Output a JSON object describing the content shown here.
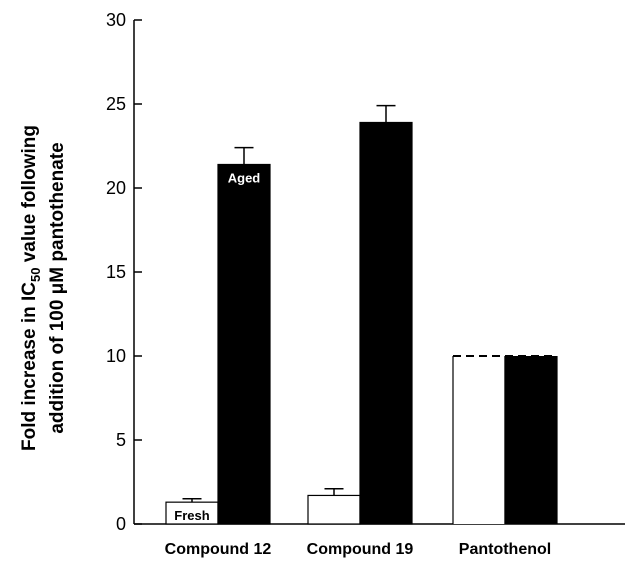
{
  "chart_data": {
    "type": "bar",
    "categories": [
      "Compound 12",
      "Compound 19",
      "Pantothenol"
    ],
    "series": [
      {
        "values": [
          1.3,
          1.7,
          10.0
        ],
        "errors": [
          0.2,
          0.4,
          null
        ],
        "color": "#ffffff",
        "dashed_top": [
          false,
          false,
          true
        ]
      },
      {
        "values": [
          21.4,
          23.9,
          10.0
        ],
        "errors": [
          1.0,
          1.0,
          null
        ],
        "color": "#000000",
        "dashed_top": [
          false,
          false,
          true
        ]
      }
    ],
    "ylabel_line1": "Fold increase in IC",
    "ylabel_sub": "50",
    "ylabel_line1_rest": " value following",
    "ylabel_line2": "addition of 100 μM pantothenate",
    "ylim": [
      0,
      30
    ],
    "yticks": [
      0,
      5,
      10,
      15,
      20,
      25,
      30
    ],
    "grid": false,
    "annotations": [
      {
        "text": "Fresh",
        "series": 0,
        "category": 0
      },
      {
        "text": "Aged",
        "series": 1,
        "category": 0
      }
    ]
  }
}
